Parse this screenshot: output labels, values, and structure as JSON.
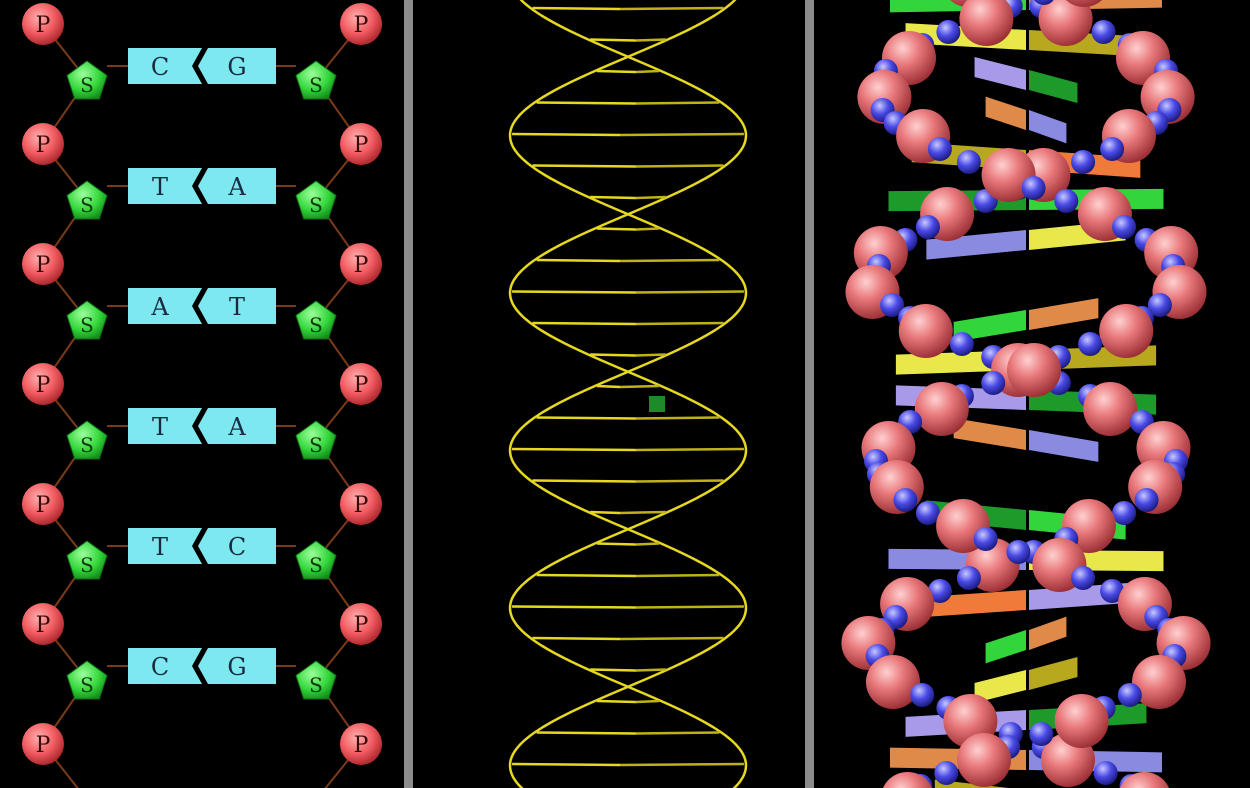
{
  "left_panel": {
    "phosphate_label": "P",
    "sugar_label": "S",
    "base_pairs": [
      {
        "left": "C",
        "right": "G"
      },
      {
        "left": "T",
        "right": "A"
      },
      {
        "left": "A",
        "right": "T"
      },
      {
        "left": "T",
        "right": "A"
      },
      {
        "left": "T",
        "right": "C"
      },
      {
        "left": "C",
        "right": "G"
      }
    ]
  },
  "colors": {
    "phosphate": "#f05a5f",
    "sugar": "#33d63a",
    "base": "#7de8f0",
    "backbone": "#7a3a1a",
    "helix_line": "#e6d81e",
    "divider": "#8c8c8c",
    "background": "#000000"
  }
}
